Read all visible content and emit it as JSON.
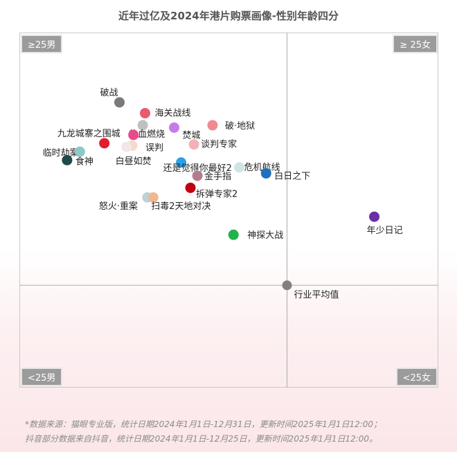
{
  "title": "近年过亿及2024年港片购票画像-性别年龄四分",
  "quadrants": {
    "top_left": "≥25男",
    "top_right": "≥ 25女",
    "bottom_left": "<25男",
    "bottom_right": "<25女"
  },
  "footnote": {
    "line1": "*数据来源：猫眼专业版，统计日期2024年1月1日-12月31日，更新时间2025年1月1日12:00；",
    "line2": "抖音部分数据来自抖音，统计日期2024年1月1日-12月25日，更新时间2025年1月1日12:00。"
  },
  "chart_data": {
    "type": "scatter",
    "title": "近年过亿及2024年港片购票画像-性别年龄四分",
    "xlabel": "",
    "ylabel": "",
    "xlim": [
      -2.3,
      1.3
    ],
    "ylim": [
      -0.85,
      2.1
    ],
    "grid": true,
    "reference_point": {
      "label": "行业平均值",
      "x": 0,
      "y": 0,
      "color": "#808080"
    },
    "points": [
      {
        "label": "破战",
        "x": -1.44,
        "y": 1.52,
        "color": "#7a7a7a"
      },
      {
        "label": "海关战线",
        "x": -1.22,
        "y": 1.43,
        "color": "#e85a6e"
      },
      {
        "label": "热血燃烧",
        "x": -1.24,
        "y": 1.33,
        "color": "#c0c0c0"
      },
      {
        "label": "焚城",
        "x": -0.97,
        "y": 1.31,
        "color": "#c77be8"
      },
      {
        "label": "破·地狱",
        "x": -0.64,
        "y": 1.33,
        "color": "#f08a92"
      },
      {
        "label": "九龙城寨之围城",
        "x": -1.32,
        "y": 1.25,
        "color": "#e84a8c"
      },
      {
        "label": "临时劫案",
        "x": -1.57,
        "y": 1.18,
        "color": "#e11b2a"
      },
      {
        "label": "误判",
        "x": -1.33,
        "y": 1.16,
        "color": "#f6d9c8"
      },
      {
        "label": "白昼如焚",
        "x": -1.38,
        "y": 1.15,
        "color": "#f0e8e8"
      },
      {
        "label": "谈判专家",
        "x": -0.8,
        "y": 1.17,
        "color": "#f3b2ba"
      },
      {
        "label": "还是觉得你最好2",
        "x": -0.91,
        "y": 1.02,
        "color": "#2aa0e8"
      },
      {
        "label": "食神",
        "x": -1.89,
        "y": 1.04,
        "color": "#1d4a4a"
      },
      {
        "label": "食神",
        "x": -1.78,
        "y": 1.11,
        "color": "#8ec9c6"
      },
      {
        "label": "危机航线",
        "x": -0.41,
        "y": 0.98,
        "color": "#d0e4e4"
      },
      {
        "label": "白日之下",
        "x": -0.18,
        "y": 0.93,
        "color": "#1f6fbf"
      },
      {
        "label": "金手指",
        "x": -0.77,
        "y": 0.91,
        "color": "#b37d8e"
      },
      {
        "label": "拆弹专家2",
        "x": -0.83,
        "y": 0.81,
        "color": "#c00010"
      },
      {
        "label": "怒火·重案",
        "x": -1.2,
        "y": 0.73,
        "color": "#b8d4d8"
      },
      {
        "label": "扫毒2天地对决",
        "x": -1.15,
        "y": 0.73,
        "color": "#f0b890"
      },
      {
        "label": "神探大战",
        "x": -0.46,
        "y": 0.42,
        "color": "#22b14c"
      },
      {
        "label": "年少日记",
        "x": 0.75,
        "y": 0.57,
        "color": "#6a2ea8"
      }
    ]
  }
}
